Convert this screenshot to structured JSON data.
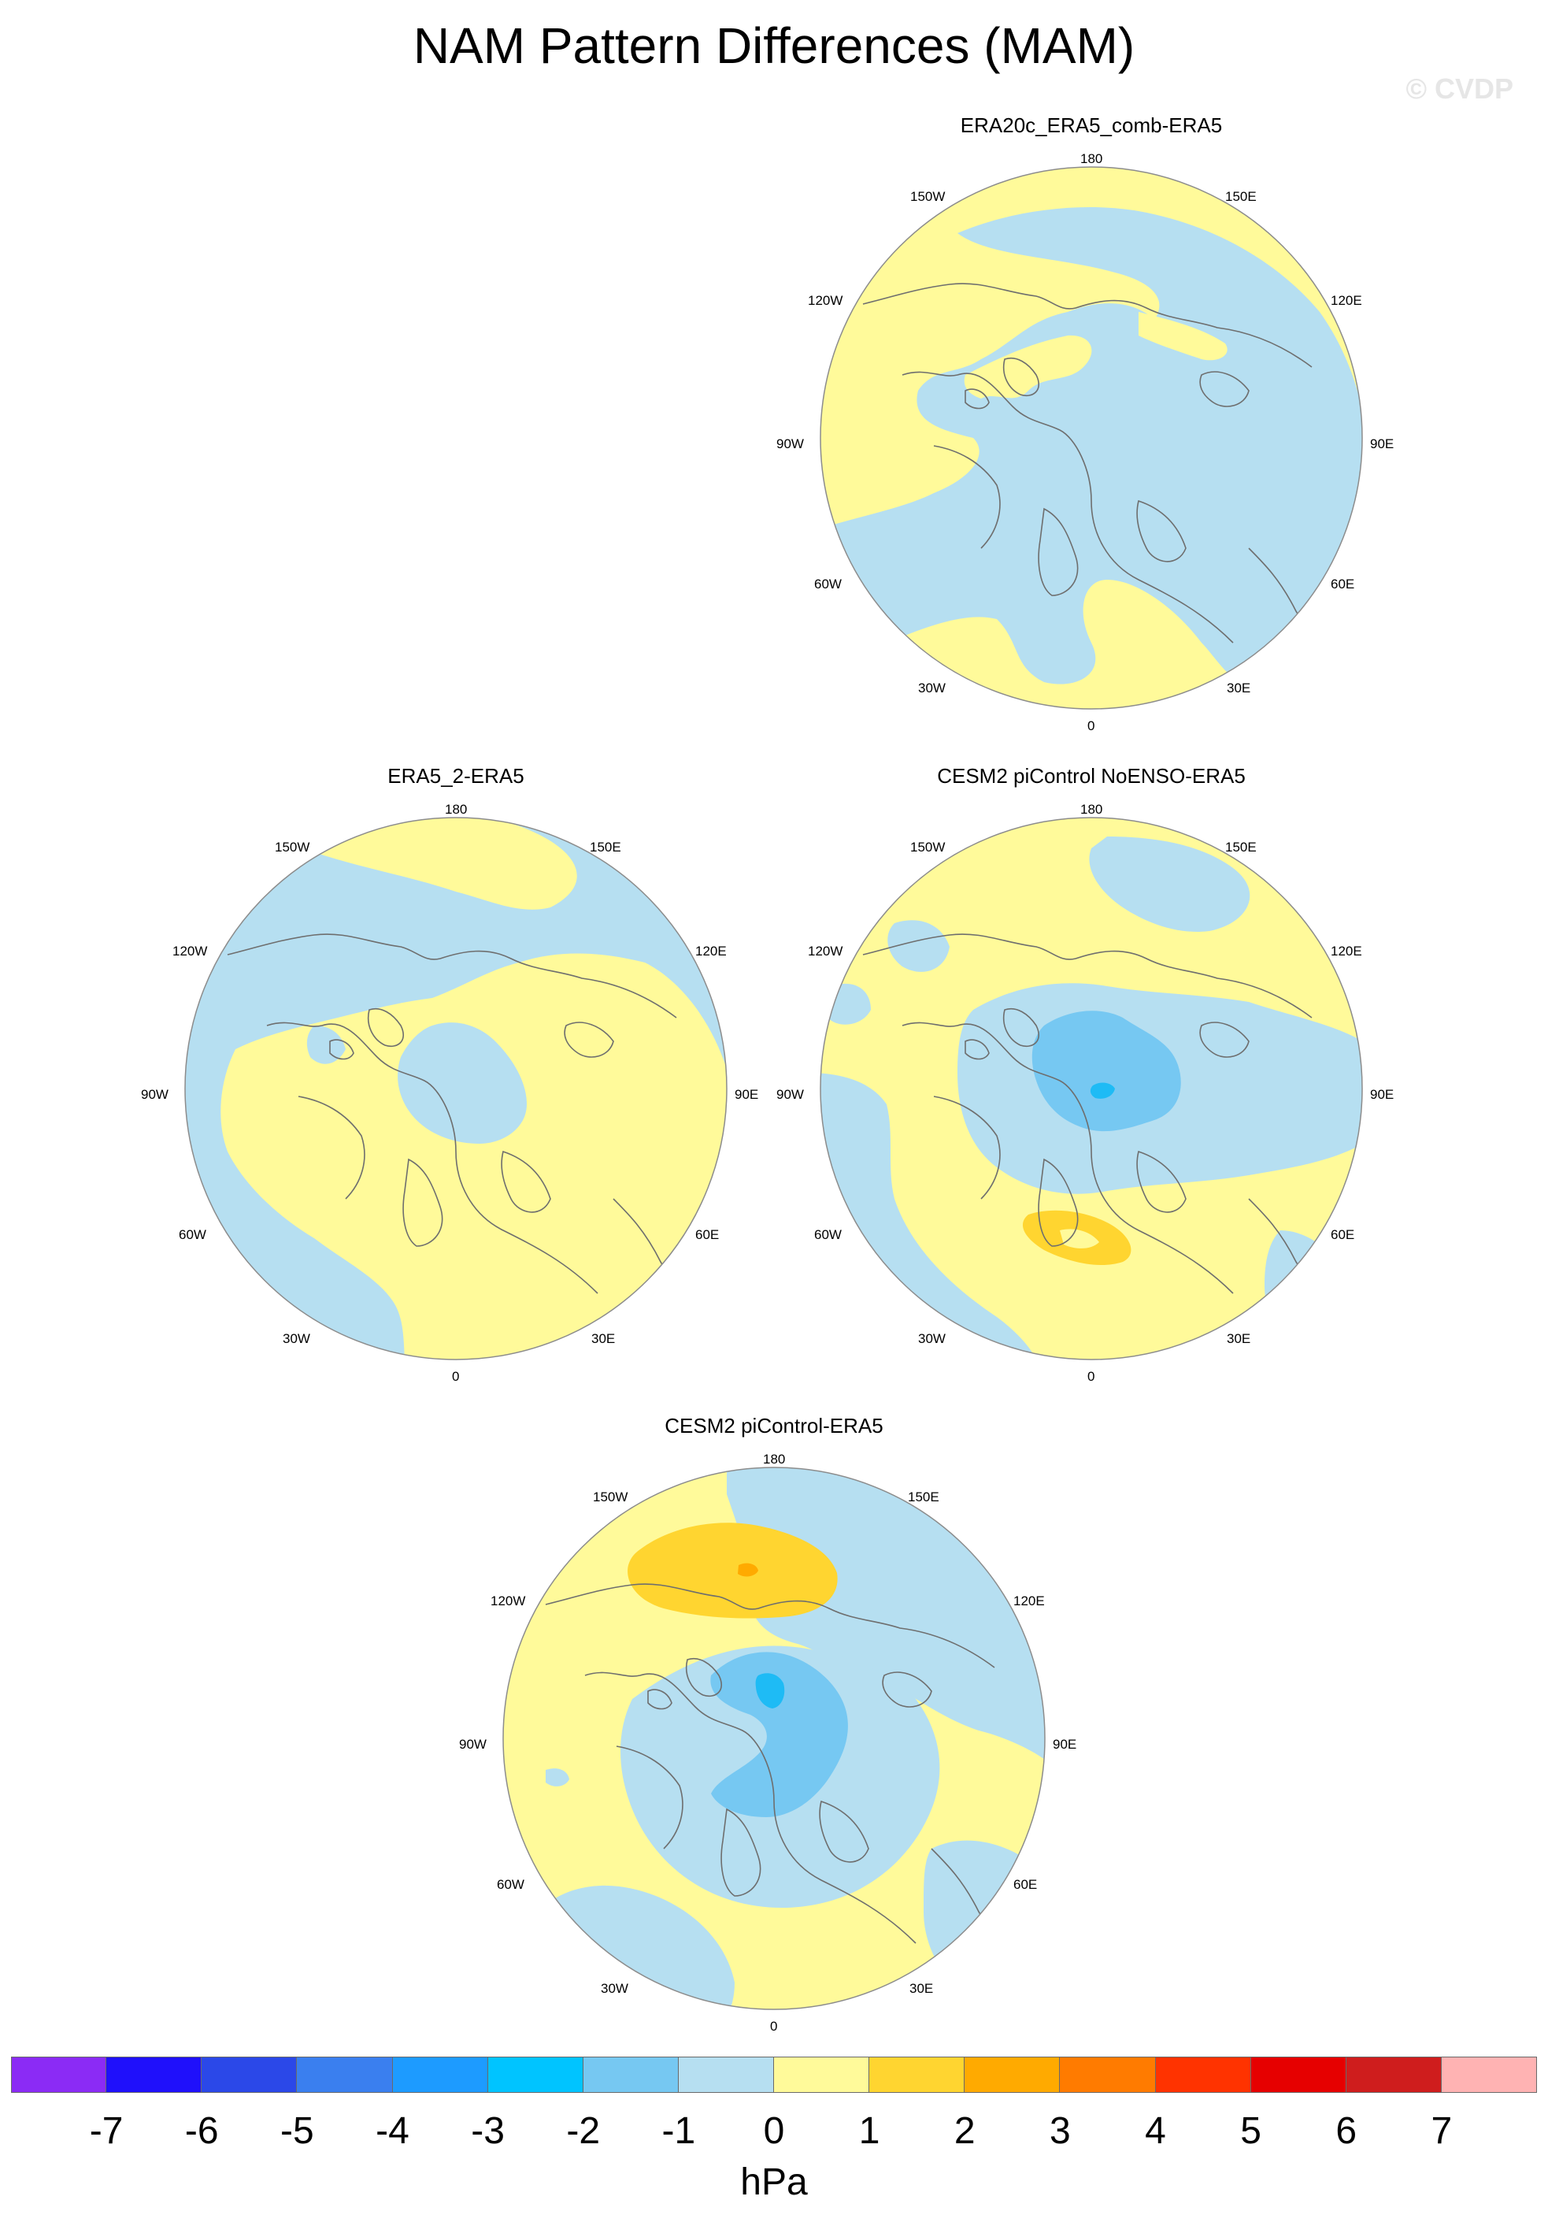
{
  "title": "NAM Pattern Differences (MAM)",
  "watermark": "© CVDP",
  "colors": {
    "ocean_base": "#b6dff1",
    "yellow": "#fffa9a",
    "orange1": "#ffd530",
    "orange2": "#ffaa00",
    "blue2": "#76c8f2",
    "blue3": "#1ebbf5",
    "coast": "#6e6e6e"
  },
  "longitude_labels": {
    "lon_180": "180",
    "lon_150e": "150E",
    "lon_120e": "120E",
    "lon_90e": "90E",
    "lon_60e": "60E",
    "lon_30e": "30E",
    "lon_0": "0",
    "lon_30w": "30W",
    "lon_60w": "60W",
    "lon_90w": "90W",
    "lon_120w": "120W",
    "lon_150w": "150W"
  },
  "panels": [
    {
      "title": "ERA20c_ERA5_comb-ERA5"
    },
    {
      "title": "ERA5_2-ERA5"
    },
    {
      "title": "CESM2 piControl NoENSO-ERA5"
    },
    {
      "title": "CESM2 piControl-ERA5"
    }
  ],
  "colorbar": {
    "units": "hPa",
    "ticks": [
      "-7",
      "-6",
      "-5",
      "-4",
      "-3",
      "-2",
      "-1",
      "0",
      "1",
      "2",
      "3",
      "4",
      "5",
      "6",
      "7"
    ],
    "colors": [
      "#8b2bf5",
      "#1f10fb",
      "#2b48e8",
      "#3a7fef",
      "#1d9bff",
      "#00c4ff",
      "#76c8f2",
      "#b6dff1",
      "#fffa9a",
      "#ffd530",
      "#ffaa00",
      "#ff7b00",
      "#ff3300",
      "#e60000",
      "#cf1d1d",
      "#ffb3b3"
    ]
  }
}
